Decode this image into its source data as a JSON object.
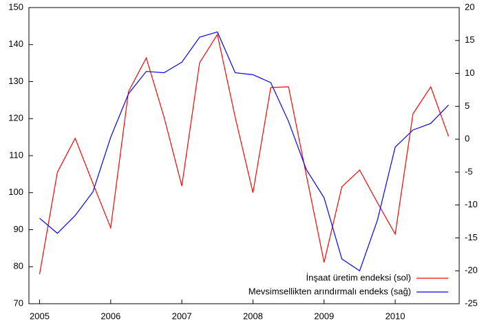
{
  "chart_data": {
    "type": "line",
    "x": [
      2005,
      2005.25,
      2005.5,
      2005.75,
      2006,
      2006.25,
      2006.5,
      2006.75,
      2007,
      2007.25,
      2007.5,
      2007.75,
      2008,
      2008.25,
      2008.5,
      2008.75,
      2009,
      2009.25,
      2009.5,
      2009.75,
      2010,
      2010.25,
      2010.5,
      2010.75
    ],
    "xlim": [
      2004.85,
      2010.9
    ],
    "xticks": [
      2005,
      2006,
      2007,
      2008,
      2009,
      2010
    ],
    "ylim": [
      70,
      150
    ],
    "yticks": [
      70,
      80,
      90,
      100,
      110,
      120,
      130,
      140,
      150
    ],
    "y2lim": [
      -25,
      20
    ],
    "y2ticks": [
      -25,
      -20,
      -15,
      -10,
      -5,
      0,
      5,
      10,
      15,
      20
    ],
    "legend": "lower right",
    "grid": false,
    "series": [
      {
        "name": "İnşaat üretim endeksi (sol)",
        "color": "#ff0000",
        "values": [
          78.0,
          105.5,
          114.7,
          102.5,
          90.5,
          127.3,
          136.4,
          120.4,
          101.8,
          135.1,
          142.7,
          120.4,
          100.0,
          128.4,
          128.6,
          104.8,
          81.2,
          101.6,
          106.1,
          97.3,
          88.8,
          121.3,
          128.6,
          115.2
        ]
      },
      {
        "name": "Mevsimsellikten arındırmalı endeks (sağ)",
        "color": "#0000ff",
        "axis": "y2",
        "values": [
          -12.0,
          -14.3,
          -11.6,
          -8.0,
          0.3,
          6.9,
          10.3,
          10.1,
          11.7,
          15.5,
          16.3,
          10.1,
          9.8,
          8.6,
          2.7,
          -4.6,
          -8.9,
          -18.2,
          -20.0,
          -12.3,
          -1.2,
          1.4,
          2.4,
          5.2
        ]
      }
    ]
  }
}
